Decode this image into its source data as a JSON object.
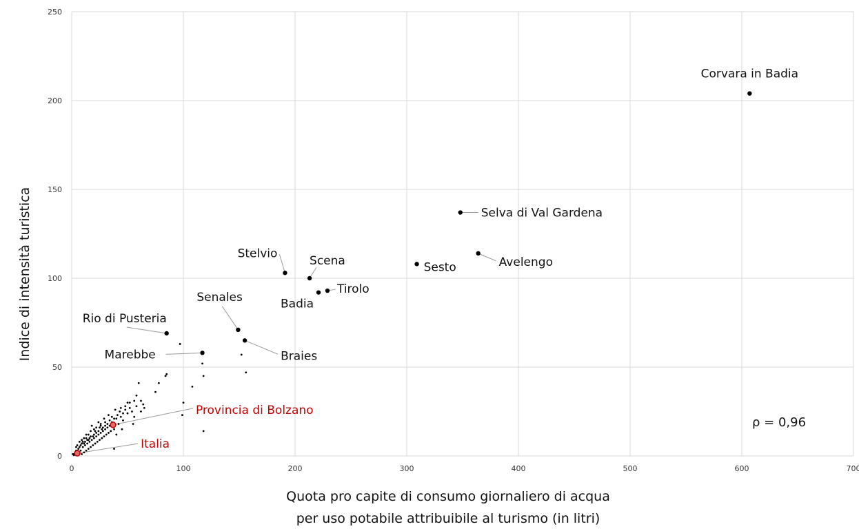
{
  "chart_data": {
    "type": "scatter",
    "xlabel_lines": [
      "Quota pro capite di consumo giornaliero di acqua",
      "per uso potabile attribuibile al turismo (in litri)"
    ],
    "ylabel": "Indice di intensità turistica",
    "xlim": [
      0,
      700
    ],
    "ylim": [
      0,
      250
    ],
    "xticks": [
      "0",
      "100",
      "200",
      "300",
      "400",
      "500",
      "600",
      "700"
    ],
    "yticks": [
      "0",
      "50",
      "100",
      "150",
      "200",
      "250"
    ],
    "grid": true,
    "annotation": "ρ = 0,96",
    "colors": {
      "points": "#000000",
      "highlight": "#c00000",
      "grid": "#d9d9d9"
    },
    "labeled_points": [
      {
        "name": "Corvara in Badia",
        "x": 607,
        "y": 204
      },
      {
        "name": "Selva di Val Gardena",
        "x": 348,
        "y": 137
      },
      {
        "name": "Avelengo",
        "x": 364,
        "y": 114
      },
      {
        "name": "Sesto",
        "x": 309,
        "y": 108
      },
      {
        "name": "Stelvio",
        "x": 191,
        "y": 103
      },
      {
        "name": "Scena",
        "x": 213,
        "y": 100
      },
      {
        "name": "Tirolo",
        "x": 229,
        "y": 93
      },
      {
        "name": "Badia",
        "x": 221,
        "y": 92
      },
      {
        "name": "Senales",
        "x": 149,
        "y": 71
      },
      {
        "name": "Braies",
        "x": 155,
        "y": 65
      },
      {
        "name": "Rio di Pusteria",
        "x": 85,
        "y": 69
      },
      {
        "name": "Marebbe",
        "x": 117,
        "y": 58
      }
    ],
    "highlighted_points": [
      {
        "name": "Provincia di Bolzano",
        "x": 37,
        "y": 17.5
      },
      {
        "name": "Italia",
        "x": 5,
        "y": 1.5
      }
    ],
    "small_points": [
      [
        97,
        63
      ],
      [
        85,
        46
      ],
      [
        84,
        45
      ],
      [
        117,
        52
      ],
      [
        118,
        45
      ],
      [
        152,
        57
      ],
      [
        156,
        47
      ],
      [
        108,
        39
      ],
      [
        100,
        30
      ],
      [
        99,
        23
      ],
      [
        118,
        14
      ],
      [
        78,
        41
      ],
      [
        75,
        36
      ],
      [
        60,
        41
      ],
      [
        58,
        34
      ],
      [
        62,
        31
      ],
      [
        56,
        31
      ],
      [
        64,
        29
      ],
      [
        65,
        27
      ],
      [
        58,
        28
      ],
      [
        50,
        30
      ],
      [
        52,
        27
      ],
      [
        48,
        26
      ],
      [
        46,
        24
      ],
      [
        43,
        25
      ],
      [
        41,
        23
      ],
      [
        38,
        21
      ],
      [
        36,
        19
      ],
      [
        34,
        20
      ],
      [
        32,
        18
      ],
      [
        30,
        17
      ],
      [
        28,
        16
      ],
      [
        27,
        15
      ],
      [
        25,
        16
      ],
      [
        24,
        14
      ],
      [
        22,
        13
      ],
      [
        21,
        14
      ],
      [
        20,
        12
      ],
      [
        19,
        11
      ],
      [
        17,
        11
      ],
      [
        16,
        10
      ],
      [
        15,
        9
      ],
      [
        14,
        9
      ],
      [
        13,
        10
      ],
      [
        12,
        8
      ],
      [
        11,
        7
      ],
      [
        10,
        8
      ],
      [
        9,
        7
      ],
      [
        8,
        6
      ],
      [
        7,
        5
      ],
      [
        6,
        4
      ],
      [
        5,
        3
      ],
      [
        4,
        3
      ],
      [
        3,
        2
      ],
      [
        2,
        1
      ],
      [
        1,
        1
      ],
      [
        3,
        1
      ],
      [
        2,
        0.5
      ],
      [
        6,
        2
      ],
      [
        8,
        3
      ],
      [
        10,
        5
      ],
      [
        12,
        6
      ],
      [
        14,
        7
      ],
      [
        16,
        8
      ],
      [
        18,
        9
      ],
      [
        20,
        10
      ],
      [
        22,
        11
      ],
      [
        24,
        12
      ],
      [
        26,
        13
      ],
      [
        28,
        14
      ],
      [
        30,
        15
      ],
      [
        32,
        16
      ],
      [
        34,
        17
      ],
      [
        36,
        18
      ],
      [
        40,
        21
      ],
      [
        44,
        22
      ],
      [
        50,
        24
      ],
      [
        54,
        25
      ],
      [
        56,
        22
      ],
      [
        46,
        20
      ],
      [
        42,
        18
      ],
      [
        38,
        15
      ],
      [
        35,
        14
      ],
      [
        33,
        13
      ],
      [
        31,
        12
      ],
      [
        29,
        11
      ],
      [
        27,
        10
      ],
      [
        25,
        9
      ],
      [
        23,
        8
      ],
      [
        21,
        7
      ],
      [
        19,
        6
      ],
      [
        17,
        5
      ],
      [
        15,
        4
      ],
      [
        13,
        3
      ],
      [
        11,
        2
      ],
      [
        9,
        1
      ],
      [
        18,
        17
      ],
      [
        22,
        16
      ],
      [
        26,
        18
      ],
      [
        30,
        19
      ],
      [
        40,
        12
      ],
      [
        45,
        15
      ],
      [
        55,
        18
      ],
      [
        38,
        4
      ],
      [
        62,
        25
      ],
      [
        48,
        28
      ],
      [
        52,
        30
      ],
      [
        44,
        27
      ],
      [
        39,
        26
      ],
      [
        36,
        22
      ],
      [
        33,
        23
      ],
      [
        29,
        21
      ],
      [
        26,
        17
      ],
      [
        24,
        19
      ],
      [
        20,
        15
      ],
      [
        17,
        14
      ],
      [
        15,
        12
      ],
      [
        13,
        12
      ],
      [
        11,
        10
      ],
      [
        9,
        9
      ],
      [
        7,
        8
      ],
      [
        5,
        6
      ],
      [
        4,
        5
      ]
    ]
  }
}
